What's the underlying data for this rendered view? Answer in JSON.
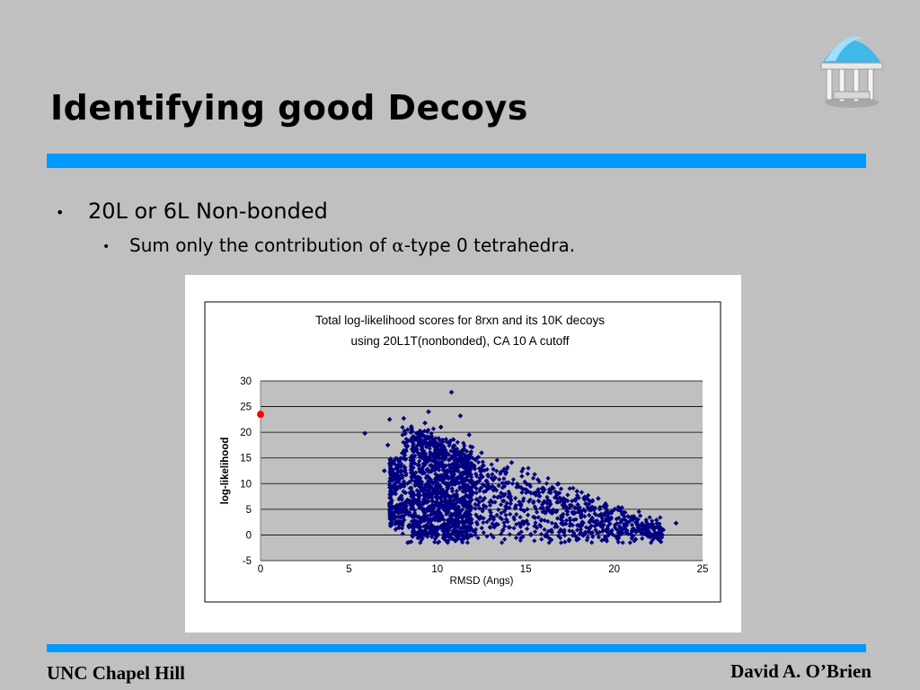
{
  "slide": {
    "title": "Identifying good Decoys",
    "bullet1": "20L or 6L Non-bonded",
    "bullet2_pre": "Sum only the contribution of ",
    "bullet2_alpha": "α",
    "bullet2_post": "-type 0 tetrahedra.",
    "footer_left": "UNC Chapel Hill",
    "footer_right": "David A. O’Brien",
    "bullet_glyph": "•",
    "logo_icon": "old-well-icon",
    "colors": {
      "background": "#c0c0c0",
      "accent_bar": "#0099ff",
      "points": "#000080",
      "native_point": "#ff0000"
    }
  },
  "chart_data": {
    "type": "scatter",
    "title_line1": "Total log-likelihood scores for 8rxn and its 10K decoys",
    "title_line2": "using 20L1T(nonbonded), CA 10 A cutoff",
    "xlabel": "RMSD (Angs)",
    "ylabel": "log-likelihood",
    "xlim": [
      0,
      25
    ],
    "ylim": [
      -5,
      30
    ],
    "xticks": [
      "0",
      "5",
      "10",
      "15",
      "20",
      "25"
    ],
    "yticks": [
      "30",
      "25",
      "20",
      "15",
      "10",
      "5",
      "0",
      "-5"
    ],
    "grid": "horizontal",
    "native_point": {
      "x": 0,
      "y": 23.5
    },
    "series": [
      {
        "marker": "diamond",
        "values": [
          {
            "x": 10.8,
            "y": 27.8
          },
          {
            "x": 9.5,
            "y": 24
          },
          {
            "x": 7.3,
            "y": 22.5
          },
          {
            "x": 8.1,
            "y": 22.7
          },
          {
            "x": 11.3,
            "y": 23.2
          },
          {
            "x": 9.3,
            "y": 21.8
          },
          {
            "x": 5.9,
            "y": 19.8
          },
          {
            "x": 7.2,
            "y": 17.5
          },
          {
            "x": 12.5,
            "y": 16
          },
          {
            "x": 23.5,
            "y": 2.3
          },
          {
            "x": 22.6,
            "y": 1.5
          },
          {
            "x": 21.7,
            "y": 0.2
          },
          {
            "x": 7,
            "y": 12.5
          },
          {
            "x": 8.5,
            "y": 20
          },
          {
            "x": 10.2,
            "y": 21
          },
          {
            "x": 11.8,
            "y": 19.5
          },
          {
            "x": 14.2,
            "y": 14.1
          },
          {
            "x": 15.5,
            "y": 11.8
          },
          {
            "x": 16.8,
            "y": 9.9
          },
          {
            "x": 17.9,
            "y": 8.5
          },
          {
            "x": 19.1,
            "y": 7.1
          },
          {
            "x": 20.3,
            "y": 5.2
          },
          {
            "x": 21.1,
            "y": 3.6
          },
          {
            "x": 22.4,
            "y": 2.9
          }
        ]
      }
    ]
  }
}
